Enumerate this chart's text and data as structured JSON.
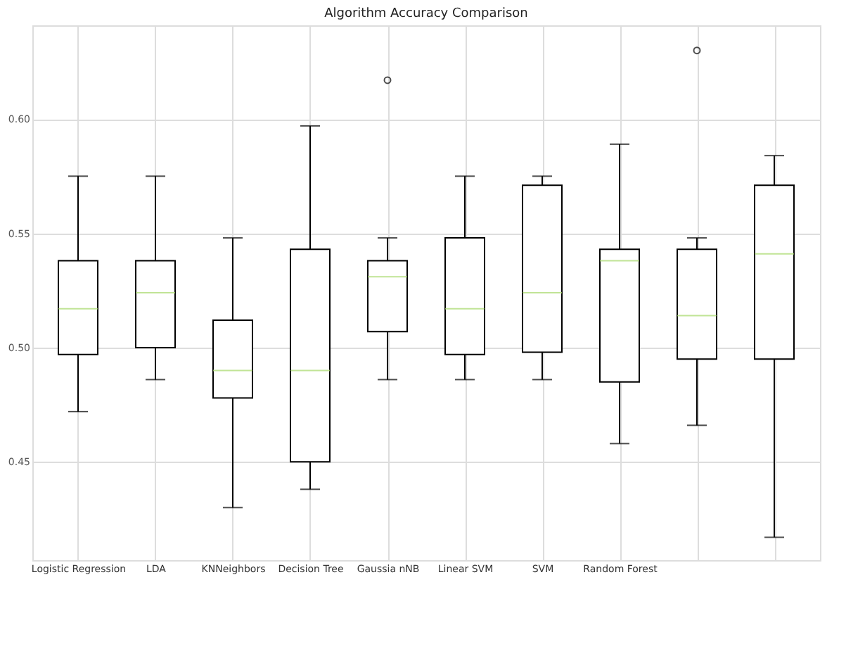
{
  "chart_data": {
    "type": "box",
    "title": "Algorithm Accuracy Comparison",
    "categories": [
      "Logistic Regression",
      "LDA",
      "KNNeighbors",
      "Decision Tree",
      "Gaussia nNB",
      "Linear SVM",
      "SVM",
      "Random Forest",
      null,
      null
    ],
    "boxes": [
      {
        "low": 0.472,
        "q1": 0.497,
        "median": 0.517,
        "q3": 0.538,
        "high": 0.575
      },
      {
        "low": 0.486,
        "q1": 0.5,
        "median": 0.524,
        "q3": 0.538,
        "high": 0.575
      },
      {
        "low": 0.43,
        "q1": 0.478,
        "median": 0.49,
        "q3": 0.512,
        "high": 0.548
      },
      {
        "low": 0.438,
        "q1": 0.45,
        "median": 0.49,
        "q3": 0.543,
        "high": 0.597
      },
      {
        "low": 0.486,
        "q1": 0.507,
        "median": 0.531,
        "q3": 0.538,
        "high": 0.548,
        "outliers": [
          0.617
        ]
      },
      {
        "low": 0.486,
        "q1": 0.497,
        "median": 0.517,
        "q3": 0.548,
        "high": 0.575
      },
      {
        "low": 0.486,
        "q1": 0.498,
        "median": 0.524,
        "q3": 0.571,
        "high": 0.575
      },
      {
        "low": 0.458,
        "q1": 0.485,
        "median": 0.538,
        "q3": 0.543,
        "high": 0.589
      },
      {
        "low": 0.466,
        "q1": 0.495,
        "median": 0.514,
        "q3": 0.543,
        "high": 0.548,
        "outliers": [
          0.63
        ]
      },
      {
        "low": 0.417,
        "q1": 0.495,
        "median": 0.541,
        "q3": 0.571,
        "high": 0.584
      }
    ],
    "color": "#000000",
    "ylim": [
      0.407,
      0.641
    ],
    "yticks": [
      {
        "value": 0.45,
        "label": "0.45"
      },
      {
        "value": 0.5,
        "label": "0.50"
      },
      {
        "value": 0.55,
        "label": "0.55"
      },
      {
        "value": 0.6,
        "label": "0.60"
      }
    ],
    "grid": true
  }
}
